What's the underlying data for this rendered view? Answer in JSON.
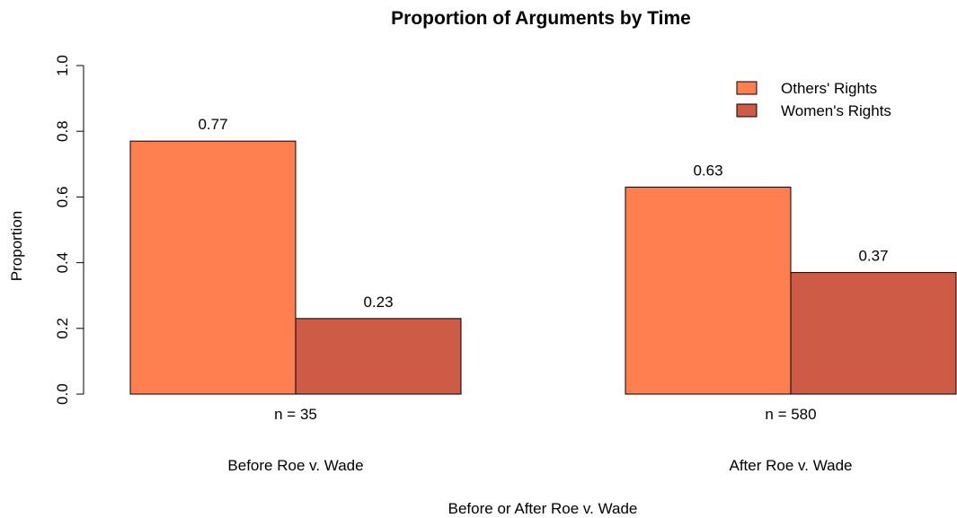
{
  "chart_data": {
    "type": "bar",
    "title": "Proportion of Arguments by Time",
    "xlabel": "Before or After Roe v. Wade",
    "ylabel": "Proportion",
    "ylim": [
      0,
      1
    ],
    "yticks": [
      "0.0",
      "0.2",
      "0.4",
      "0.6",
      "0.8",
      "1.0"
    ],
    "categories": [
      "Before Roe v. Wade",
      "After Roe v. Wade"
    ],
    "sample_sizes": [
      "n = 35",
      "n = 580"
    ],
    "series": [
      {
        "name": "Others' Rights",
        "values": [
          0.77,
          0.63
        ],
        "labels": [
          "0.77",
          "0.63"
        ],
        "color": "#FF7F50"
      },
      {
        "name": "Women's Rights",
        "values": [
          0.23,
          0.37
        ],
        "labels": [
          "0.23",
          "0.37"
        ],
        "color": "#CD5B45"
      }
    ],
    "legend_position": "top-right",
    "grid": false
  }
}
